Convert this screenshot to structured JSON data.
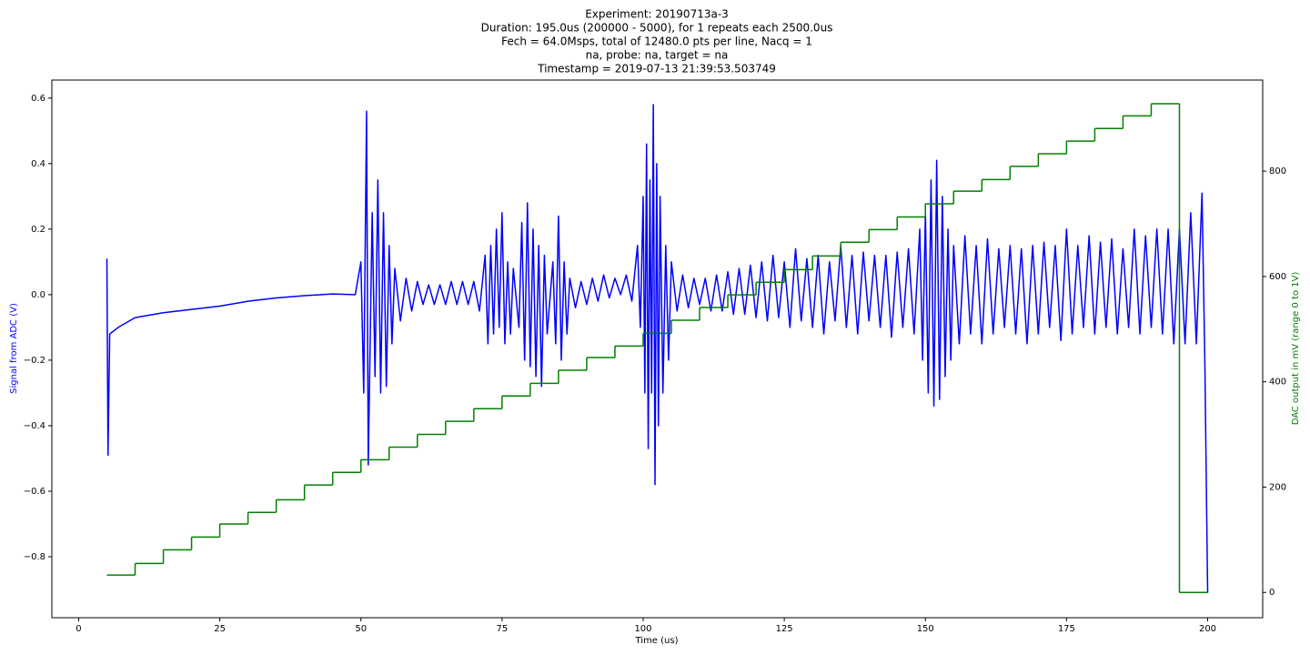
{
  "chart_data": {
    "type": "line",
    "title": [
      "Experiment: 20190713a-3",
      "Duration: 195.0us (200000 - 5000), for 1 repeats each 2500.0us",
      "Fech = 64.0Msps, total of 12480.0 pts per line, Nacq = 1",
      "na, probe: na, target = na",
      "Timestamp = 2019-07-13 21:39:53.503749"
    ],
    "xlabel": "Time (us)",
    "ylabel": "Signal from ADC (V)",
    "y2label": "DAC output in mV (range 0 to 1V)",
    "xlim": [
      -4.75,
      209.75
    ],
    "xticks": [
      0,
      25,
      50,
      75,
      100,
      125,
      150,
      175,
      200
    ],
    "ylim": [
      -0.986,
      0.655
    ],
    "yticks": [
      {
        "value": -0.8,
        "label": "−0.8"
      },
      {
        "value": -0.6,
        "label": "−0.6"
      },
      {
        "value": -0.4,
        "label": "−0.4"
      },
      {
        "value": -0.2,
        "label": "−0.2"
      },
      {
        "value": 0,
        "label": "0.0"
      },
      {
        "value": 0.2,
        "label": "0.2"
      },
      {
        "value": 0.4,
        "label": "0.4"
      },
      {
        "value": 0.6,
        "label": "0.6"
      }
    ],
    "y2lim": [
      -48,
      973
    ],
    "y2ticks": [
      0,
      200,
      400,
      600,
      800
    ],
    "grid": false,
    "series": [
      {
        "color": "#0000ff",
        "axis": "y",
        "drawstyle": "default",
        "x": [
          5,
          5.2,
          5.5,
          7,
          10,
          15,
          20,
          25,
          30,
          35,
          40,
          45,
          49,
          50,
          50.5,
          51,
          51.3,
          52,
          52.5,
          53,
          53.5,
          54,
          54.5,
          55,
          55.5,
          56,
          57,
          58,
          59,
          60,
          61,
          62,
          63,
          64,
          65,
          66,
          67,
          68,
          69,
          70,
          71,
          72,
          72.5,
          73,
          73.5,
          74,
          74.5,
          75,
          75.5,
          76,
          76.5,
          77,
          78,
          78.5,
          79,
          79.5,
          80,
          80.5,
          81,
          81.5,
          82,
          82.5,
          83,
          84,
          84.5,
          85,
          85.5,
          86,
          86.5,
          87,
          88,
          89,
          90,
          91,
          92,
          93,
          94,
          95,
          96,
          97,
          98,
          99,
          99.5,
          100,
          100.3,
          100.6,
          100.9,
          101.2,
          101.5,
          101.8,
          102.1,
          102.4,
          102.7,
          103,
          103.5,
          104,
          104.5,
          105,
          106,
          107,
          108,
          109,
          110,
          111,
          112,
          113,
          114,
          115,
          116,
          117,
          118,
          119,
          120,
          121,
          122,
          123,
          124,
          125,
          126,
          127,
          128,
          129,
          130,
          131,
          132,
          133,
          134,
          135,
          136,
          137,
          138,
          139,
          140,
          141,
          142,
          143,
          144,
          145,
          146,
          147,
          148,
          149,
          149.5,
          150,
          150.5,
          151,
          151.5,
          152,
          152.5,
          153,
          153.5,
          154,
          154.5,
          155,
          156,
          157,
          158,
          159,
          160,
          161,
          162,
          163,
          164,
          165,
          166,
          167,
          168,
          169,
          170,
          171,
          172,
          173,
          174,
          175,
          176,
          177,
          178,
          179,
          180,
          181,
          182,
          183,
          184,
          185,
          186,
          187,
          188,
          189,
          190,
          191,
          192,
          193,
          194,
          195,
          196,
          197,
          198,
          199,
          199.5,
          200
        ],
        "values": [
          0.11,
          -0.49,
          -0.12,
          -0.1,
          -0.07,
          -0.055,
          -0.045,
          -0.035,
          -0.02,
          -0.01,
          -0.003,
          0.002,
          0.0,
          0.1,
          -0.3,
          0.56,
          -0.52,
          0.25,
          -0.25,
          0.35,
          -0.3,
          0.25,
          -0.28,
          0.15,
          -0.15,
          0.08,
          -0.08,
          0.05,
          -0.05,
          0.04,
          -0.03,
          0.03,
          -0.03,
          0.03,
          -0.03,
          0.04,
          -0.03,
          0.04,
          -0.03,
          0.04,
          -0.05,
          0.12,
          -0.15,
          0.15,
          -0.12,
          0.2,
          -0.1,
          0.25,
          -0.15,
          0.1,
          -0.12,
          0.08,
          -0.1,
          0.22,
          -0.2,
          0.28,
          -0.22,
          0.2,
          -0.25,
          0.15,
          -0.28,
          0.12,
          -0.12,
          0.1,
          -0.15,
          0.24,
          -0.2,
          0.1,
          -0.12,
          0.05,
          -0.04,
          0.04,
          -0.03,
          0.05,
          -0.02,
          0.06,
          -0.01,
          0.05,
          0.0,
          0.06,
          -0.02,
          0.15,
          -0.1,
          0.3,
          -0.3,
          0.46,
          -0.47,
          0.35,
          -0.3,
          0.58,
          -0.58,
          0.4,
          -0.4,
          0.3,
          -0.3,
          0.15,
          -0.2,
          0.1,
          -0.05,
          0.06,
          -0.04,
          0.05,
          -0.03,
          0.05,
          -0.05,
          0.06,
          -0.05,
          0.07,
          -0.06,
          0.08,
          -0.06,
          0.09,
          -0.07,
          0.1,
          -0.08,
          0.12,
          -0.07,
          0.1,
          -0.1,
          0.14,
          -0.08,
          0.11,
          -0.1,
          0.12,
          -0.12,
          0.1,
          -0.08,
          0.15,
          -0.1,
          0.12,
          -0.12,
          0.13,
          -0.08,
          0.12,
          -0.1,
          0.12,
          -0.13,
          0.13,
          -0.1,
          0.14,
          -0.12,
          0.2,
          -0.2,
          0.25,
          -0.3,
          0.35,
          -0.34,
          0.41,
          -0.32,
          0.3,
          -0.25,
          0.2,
          -0.2,
          0.15,
          -0.15,
          0.18,
          -0.12,
          0.15,
          -0.15,
          0.17,
          -0.12,
          0.14,
          -0.1,
          0.15,
          -0.12,
          0.14,
          -0.15,
          0.15,
          -0.12,
          0.16,
          -0.1,
          0.15,
          -0.14,
          0.2,
          -0.12,
          0.15,
          -0.1,
          0.18,
          -0.12,
          0.16,
          -0.1,
          0.17,
          -0.12,
          0.14,
          -0.1,
          0.2,
          -0.12,
          0.18,
          -0.1,
          0.2,
          -0.12,
          0.2,
          -0.15,
          0.2,
          -0.15,
          0.25,
          -0.15,
          0.31,
          -0.2,
          -0.91
        ]
      },
      {
        "color": "#008000",
        "axis": "y2",
        "drawstyle": "steps-post",
        "x": [
          5,
          10,
          15,
          20,
          25,
          30,
          35,
          40,
          45,
          50,
          55,
          60,
          65,
          70,
          75,
          80,
          85,
          90,
          95,
          100,
          105,
          110,
          115,
          120,
          125,
          130,
          135,
          140,
          145,
          150,
          155,
          160,
          165,
          170,
          175,
          180,
          185,
          190,
          195,
          200
        ],
        "values": [
          33,
          55,
          81,
          105,
          130,
          152,
          176,
          204,
          228,
          252,
          276,
          300,
          325,
          349,
          373,
          397,
          422,
          446,
          468,
          492,
          517,
          541,
          565,
          589,
          613,
          639,
          665,
          689,
          713,
          738,
          762,
          784,
          809,
          833,
          857,
          881,
          905,
          928,
          0,
          0
        ]
      }
    ]
  }
}
